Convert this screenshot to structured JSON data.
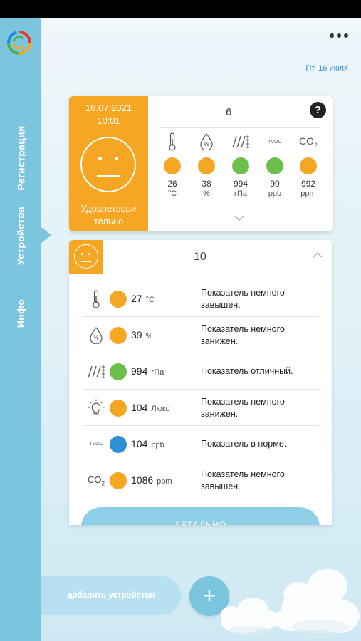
{
  "sidebar": {
    "items": [
      {
        "label": "Регистрация"
      },
      {
        "label": "Устройства"
      },
      {
        "label": "Инфо"
      }
    ]
  },
  "header": {
    "date": "Пт, 16 июля"
  },
  "summary_card": {
    "date": "16.07.2021",
    "time": "10:01",
    "status": "Удовлетвори тельно",
    "device_number": "6",
    "help_label": "?",
    "readings": [
      {
        "icon": "thermometer-icon",
        "value": "26",
        "unit": "°C",
        "color": "#f5a623"
      },
      {
        "icon": "humidity-icon",
        "value": "38",
        "unit": "%",
        "color": "#f5a623"
      },
      {
        "icon": "pressure-icon",
        "value": "994",
        "unit": "гПа",
        "color": "#6dbf4b"
      },
      {
        "icon": "tvoc-icon",
        "label": "TVOC",
        "value": "90",
        "unit": "ppb",
        "color": "#6dbf4b"
      },
      {
        "icon": "co2-icon",
        "label": "CO",
        "sub": "2",
        "value": "992",
        "unit": "ppm",
        "color": "#f5a623"
      }
    ]
  },
  "detail_card": {
    "device_number": "10",
    "rows": [
      {
        "icon": "thermometer-icon",
        "value": "27",
        "unit": "°C",
        "color": "#f5a623",
        "desc": "Показатель немного завышен."
      },
      {
        "icon": "humidity-icon",
        "value": "39",
        "unit": "%",
        "color": "#f5a623",
        "desc": "Показатель немного занижен."
      },
      {
        "icon": "pressure-icon",
        "value": "994",
        "unit": "гПа",
        "color": "#6dbf4b",
        "desc": "Показатель отличный."
      },
      {
        "icon": "light-icon",
        "value": "104",
        "unit": "Люкс",
        "color": "#f5a623",
        "desc": "Показатель немного занижен."
      },
      {
        "icon": "tvoc-icon",
        "label": "TVOC",
        "value": "104",
        "unit": "ppb",
        "color": "#2d8fd6",
        "desc": "Показатель в норме."
      },
      {
        "icon": "co2-icon",
        "label": "CO",
        "sub": "2",
        "value": "1086",
        "unit": "ppm",
        "color": "#f5a623",
        "desc": "Показатель немного завышен."
      }
    ],
    "details_button": "ДЕТАЛЬНО"
  },
  "bottom": {
    "add_device": "добавить устройство",
    "plus": "+"
  }
}
